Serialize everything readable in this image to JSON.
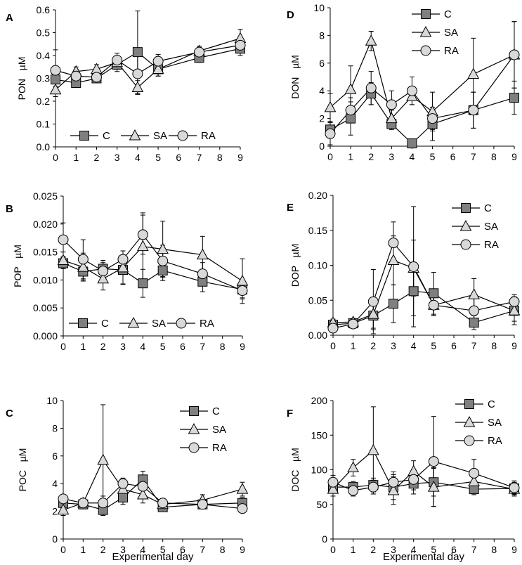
{
  "chart_data": [
    {
      "id": "A",
      "type": "line",
      "panel_letter": "A",
      "ylabel": "PON   µM",
      "xlabel": "",
      "ylim": [
        0,
        0.6
      ],
      "yticks": [
        0.0,
        0.1,
        0.2,
        0.3,
        0.4,
        0.5,
        0.6
      ],
      "ytick_labels": [
        "0.0",
        "0.1",
        "0.2",
        "0.3",
        "0.4",
        "0.5",
        "0.6"
      ],
      "xlim": [
        0,
        9
      ],
      "xticks": [
        0,
        1,
        2,
        3,
        4,
        5,
        6,
        7,
        8,
        9
      ],
      "xtick_labels": [
        "0",
        "1",
        "2",
        "3",
        "4",
        "5",
        "6",
        "7",
        "8",
        "9"
      ],
      "legend": "bottom-horizontal",
      "series": [
        {
          "name": "C",
          "marker": "square",
          "x": [
            0,
            1,
            2,
            3,
            4,
            5,
            7,
            9
          ],
          "y": [
            0.295,
            0.28,
            0.3,
            0.36,
            0.415,
            0.34,
            0.39,
            0.43
          ],
          "err": [
            0.03,
            0.02,
            0.02,
            0.03,
            0.18,
            0.03,
            0.02,
            0.03
          ]
        },
        {
          "name": "SA",
          "marker": "triangle",
          "x": [
            0,
            1,
            2,
            3,
            4,
            5,
            7,
            9
          ],
          "y": [
            0.25,
            0.33,
            0.34,
            0.37,
            0.26,
            0.34,
            0.42,
            0.475
          ],
          "err": [
            0.03,
            0.02,
            0.02,
            0.02,
            0.03,
            0.03,
            0.02,
            0.04
          ]
        },
        {
          "name": "RA",
          "marker": "circle",
          "x": [
            0,
            1,
            2,
            3,
            4,
            5,
            7,
            9
          ],
          "y": [
            0.335,
            0.31,
            0.305,
            0.38,
            0.32,
            0.375,
            0.415,
            0.445
          ],
          "err": [
            0.09,
            0.03,
            0.02,
            0.03,
            0.09,
            0.03,
            0.02,
            0.03
          ]
        }
      ]
    },
    {
      "id": "D",
      "type": "line",
      "panel_letter": "D",
      "ylabel": "DON   µM",
      "xlabel": "",
      "ylim": [
        0,
        10
      ],
      "yticks": [
        0,
        2,
        4,
        6,
        8,
        10
      ],
      "ytick_labels": [
        "0",
        "2",
        "4",
        "6",
        "8",
        "10"
      ],
      "xlim": [
        0,
        9
      ],
      "xticks": [
        0,
        1,
        2,
        3,
        4,
        5,
        6,
        7,
        8,
        9
      ],
      "xtick_labels": [
        "0",
        "1",
        "2",
        "3",
        "4",
        "5",
        "6",
        "7",
        "8",
        "9"
      ],
      "legend": "top-left-vertical",
      "series": [
        {
          "name": "C",
          "marker": "square",
          "x": [
            0,
            1,
            2,
            3,
            4,
            5,
            7,
            9
          ],
          "y": [
            1.2,
            2.0,
            3.8,
            1.6,
            0.2,
            1.6,
            2.6,
            3.5
          ],
          "err": [
            0.6,
            1.2,
            0.8,
            0.4,
            0.2,
            1.2,
            1.3,
            1.2
          ]
        },
        {
          "name": "SA",
          "marker": "triangle",
          "x": [
            0,
            1,
            2,
            3,
            4,
            5,
            7,
            9
          ],
          "y": [
            2.8,
            4.1,
            7.6,
            2.0,
            3.6,
            2.5,
            5.2,
            6.6
          ],
          "err": [
            1.0,
            1.7,
            0.7,
            0.6,
            0.6,
            1.4,
            2.6,
            2.4
          ]
        },
        {
          "name": "RA",
          "marker": "circle",
          "x": [
            0,
            1,
            2,
            3,
            4,
            5,
            7,
            9
          ],
          "y": [
            0.9,
            2.6,
            4.2,
            3.0,
            4.0,
            2.0,
            2.6,
            6.6
          ],
          "err": [
            0.8,
            0.9,
            1.2,
            1.0,
            1.0,
            0.8,
            1.3,
            2.4
          ]
        }
      ]
    },
    {
      "id": "B",
      "type": "line",
      "panel_letter": "B",
      "ylabel": "POP   µM",
      "xlabel": "",
      "ylim": [
        0,
        0.025
      ],
      "yticks": [
        0.0,
        0.005,
        0.01,
        0.015,
        0.02,
        0.025
      ],
      "ytick_labels": [
        "0.000",
        "0.005",
        "0.010",
        "0.015",
        "0.020",
        "0.025"
      ],
      "xlim": [
        0,
        9
      ],
      "xticks": [
        0,
        1,
        2,
        3,
        4,
        5,
        6,
        7,
        8,
        9
      ],
      "xtick_labels": [
        "0",
        "1",
        "2",
        "3",
        "4",
        "5",
        "6",
        "7",
        "8",
        "9"
      ],
      "legend": "bottom-horizontal",
      "series": [
        {
          "name": "C",
          "marker": "square",
          "x": [
            0,
            1,
            2,
            3,
            4,
            5,
            7,
            9
          ],
          "y": [
            0.013,
            0.0115,
            0.012,
            0.0118,
            0.0094,
            0.0117,
            0.0097,
            0.0083
          ],
          "err": [
            0.001,
            0.0015,
            0.0015,
            0.0025,
            0.0025,
            0.0018,
            0.0018,
            0.0015
          ]
        },
        {
          "name": "SA",
          "marker": "triangle",
          "x": [
            0,
            1,
            2,
            3,
            4,
            5,
            7,
            9
          ],
          "y": [
            0.0135,
            0.0123,
            0.0102,
            0.0122,
            0.016,
            0.0155,
            0.0145,
            0.0098
          ],
          "err": [
            0.0015,
            0.0025,
            0.002,
            0.003,
            0.006,
            0.005,
            0.0033,
            0.004
          ]
        },
        {
          "name": "RA",
          "marker": "circle",
          "x": [
            0,
            1,
            2,
            3,
            4,
            5,
            7,
            9
          ],
          "y": [
            0.0172,
            0.0137,
            0.0116,
            0.0137,
            0.0181,
            0.0134,
            0.0111,
            0.0081
          ],
          "err": [
            0.003,
            0.0035,
            0.0015,
            0.0015,
            0.0035,
            0.0028,
            0.002,
            0.0015
          ]
        }
      ]
    },
    {
      "id": "E",
      "type": "line",
      "panel_letter": "E",
      "ylabel": "DOP   µM",
      "xlabel": "",
      "ylim": [
        0,
        0.2
      ],
      "yticks": [
        0.0,
        0.05,
        0.1,
        0.15,
        0.2
      ],
      "ytick_labels": [
        "0.00",
        "0.05",
        "0.10",
        "0.15",
        "0.20"
      ],
      "xlim": [
        0,
        9
      ],
      "xticks": [
        0,
        1,
        2,
        3,
        4,
        5,
        6,
        7,
        8,
        9
      ],
      "xtick_labels": [
        "0",
        "1",
        "2",
        "3",
        "4",
        "5",
        "6",
        "7",
        "8",
        "9"
      ],
      "legend": "top-right-vertical",
      "series": [
        {
          "name": "C",
          "marker": "square",
          "x": [
            0,
            1,
            2,
            3,
            4,
            5,
            7,
            9
          ],
          "y": [
            0.015,
            0.017,
            0.028,
            0.045,
            0.063,
            0.06,
            0.018,
            0.035
          ],
          "err": [
            0.005,
            0.004,
            0.02,
            0.027,
            0.035,
            0.03,
            0.01,
            0.015
          ]
        },
        {
          "name": "SA",
          "marker": "triangle",
          "x": [
            0,
            1,
            2,
            3,
            4,
            5,
            7,
            9
          ],
          "y": [
            0.018,
            0.019,
            0.03,
            0.107,
            0.096,
            0.043,
            0.058,
            0.035
          ],
          "err": [
            0.005,
            0.005,
            0.02,
            0.035,
            0.04,
            0.015,
            0.023,
            0.02
          ]
        },
        {
          "name": "RA",
          "marker": "circle",
          "x": [
            0,
            1,
            2,
            3,
            4,
            5,
            7,
            9
          ],
          "y": [
            0.01,
            0.016,
            0.048,
            0.132,
            0.098,
            0.043,
            0.035,
            0.048
          ],
          "err": [
            0.005,
            0.004,
            0.046,
            0.03,
            0.086,
            0.015,
            0.02,
            0.01
          ]
        }
      ]
    },
    {
      "id": "C",
      "type": "line",
      "panel_letter": "C",
      "ylabel": "POC   µM",
      "xlabel": "Experimental day",
      "ylim": [
        0,
        10
      ],
      "yticks": [
        0,
        2,
        4,
        6,
        8,
        10
      ],
      "ytick_labels": [
        "0",
        "2",
        "4",
        "6",
        "8",
        "10"
      ],
      "xlim": [
        0,
        9
      ],
      "xticks": [
        0,
        1,
        2,
        3,
        4,
        5,
        6,
        7,
        8,
        9
      ],
      "xtick_labels": [
        "0",
        "1",
        "2",
        "3",
        "4",
        "5",
        "6",
        "7",
        "8",
        "9"
      ],
      "legend": "top-right-vertical",
      "series": [
        {
          "name": "C",
          "marker": "square",
          "x": [
            0,
            1,
            2,
            3,
            4,
            5,
            7,
            9
          ],
          "y": [
            2.6,
            2.5,
            2.1,
            3.0,
            4.3,
            2.3,
            2.5,
            2.6
          ],
          "err": [
            0.4,
            0.3,
            0.3,
            0.5,
            0.6,
            0.3,
            0.3,
            0.4
          ]
        },
        {
          "name": "SA",
          "marker": "triangle",
          "x": [
            0,
            1,
            2,
            3,
            4,
            5,
            7,
            9
          ],
          "y": [
            2.1,
            2.6,
            5.7,
            3.6,
            3.2,
            2.5,
            2.8,
            3.6
          ],
          "err": [
            0.4,
            0.3,
            4.0,
            0.5,
            0.6,
            0.3,
            0.4,
            0.5
          ]
        },
        {
          "name": "RA",
          "marker": "circle",
          "x": [
            0,
            1,
            2,
            3,
            4,
            5,
            7,
            9
          ],
          "y": [
            2.9,
            2.6,
            2.6,
            4.0,
            3.8,
            2.6,
            2.5,
            2.2
          ],
          "err": [
            0.3,
            0.3,
            0.5,
            0.4,
            0.5,
            0.3,
            0.3,
            0.3
          ]
        }
      ]
    },
    {
      "id": "F",
      "type": "line",
      "panel_letter": "F",
      "ylabel": "DOC   µM",
      "xlabel": "Experimental day",
      "ylim": [
        0,
        200
      ],
      "yticks": [
        0,
        50,
        100,
        150,
        200
      ],
      "ytick_labels": [
        "0",
        "50",
        "100",
        "150",
        "200"
      ],
      "xlim": [
        0,
        9
      ],
      "xticks": [
        0,
        1,
        2,
        3,
        4,
        5,
        6,
        7,
        8,
        9
      ],
      "xtick_labels": [
        "0",
        "1",
        "2",
        "3",
        "4",
        "5",
        "6",
        "7",
        "8",
        "9"
      ],
      "legend": "top-right-vertical",
      "series": [
        {
          "name": "C",
          "marker": "square",
          "x": [
            0,
            1,
            2,
            3,
            4,
            5,
            7,
            9
          ],
          "y": [
            75,
            75,
            78,
            75,
            80,
            82,
            72,
            73
          ],
          "err": [
            8,
            8,
            10,
            18,
            15,
            20,
            8,
            8
          ]
        },
        {
          "name": "SA",
          "marker": "triangle",
          "x": [
            0,
            1,
            2,
            3,
            4,
            5,
            7,
            9
          ],
          "y": [
            72,
            103,
            128,
            70,
            98,
            75,
            83,
            72
          ],
          "err": [
            10,
            12,
            63,
            20,
            15,
            28,
            15,
            10
          ]
        },
        {
          "name": "RA",
          "marker": "circle",
          "x": [
            0,
            1,
            2,
            3,
            4,
            5,
            7,
            9
          ],
          "y": [
            82,
            70,
            75,
            82,
            86,
            112,
            95,
            74
          ],
          "err": [
            10,
            8,
            10,
            15,
            15,
            65,
            20,
            10
          ]
        }
      ]
    }
  ]
}
